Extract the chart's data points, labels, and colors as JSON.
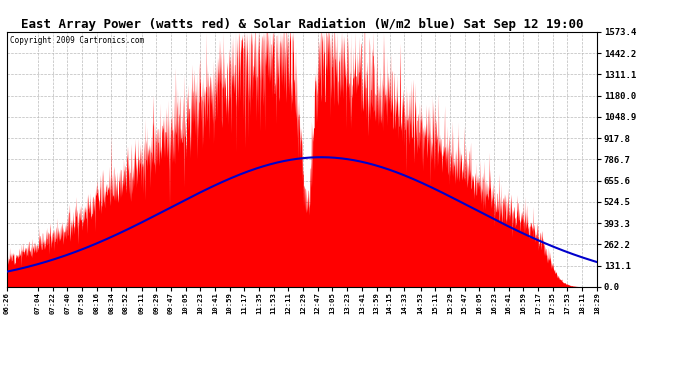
{
  "title": "East Array Power (watts red) & Solar Radiation (W/m2 blue) Sat Sep 12 19:00",
  "copyright": "Copyright 2009 Cartronics.com",
  "ylabel_right_values": [
    0.0,
    131.1,
    262.2,
    393.3,
    524.5,
    655.6,
    786.7,
    917.8,
    1048.9,
    1180.0,
    1311.1,
    1442.2,
    1573.4
  ],
  "ymax": 1573.4,
  "ymin": 0.0,
  "background_color": "#ffffff",
  "plot_background": "#ffffff",
  "grid_color": "#bbbbbb",
  "fill_color": "#ff0000",
  "line_color": "#0000cc",
  "title_fontsize": 9,
  "x_tick_labels": [
    "06:26",
    "07:04",
    "07:22",
    "07:40",
    "07:58",
    "08:16",
    "08:34",
    "08:52",
    "09:11",
    "09:29",
    "09:47",
    "10:05",
    "10:23",
    "10:41",
    "10:59",
    "11:17",
    "11:35",
    "11:53",
    "12:11",
    "12:29",
    "12:47",
    "13:05",
    "13:23",
    "13:41",
    "13:59",
    "14:15",
    "14:33",
    "14:53",
    "15:11",
    "15:29",
    "15:47",
    "16:05",
    "16:23",
    "16:41",
    "16:59",
    "17:17",
    "17:35",
    "17:53",
    "18:11",
    "18:29"
  ]
}
